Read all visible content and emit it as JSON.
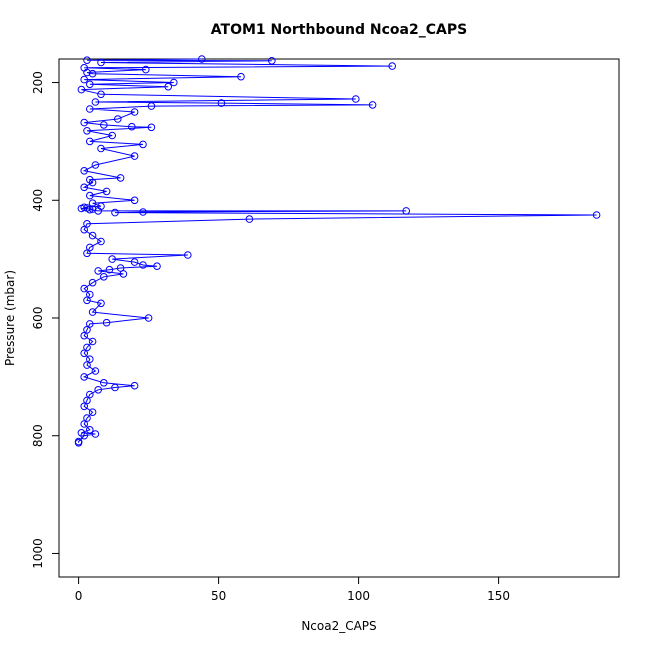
{
  "chart_data": {
    "type": "line",
    "title": "ATOM1 Northbound Ncoa2_CAPS",
    "xlabel": "Ncoa2_CAPS",
    "ylabel": "Pressure (mbar)",
    "xlim": [
      -7,
      193
    ],
    "ylim": [
      1040,
      160
    ],
    "y_reversed": true,
    "grid": false,
    "x_ticks": [
      0,
      50,
      100,
      150
    ],
    "y_ticks": [
      200,
      400,
      600,
      800,
      1000
    ],
    "x_tick_labels": [
      "0",
      "50",
      "100",
      "150"
    ],
    "y_tick_labels": [
      "200",
      "400",
      "600",
      "800",
      "1000"
    ],
    "series_color": "#0000ff",
    "series": [
      {
        "x": [
          44,
          3,
          69,
          8,
          112,
          2,
          24,
          3,
          5,
          58,
          2,
          34,
          4,
          32,
          1,
          8,
          99,
          6,
          51,
          105,
          26,
          4,
          20,
          14,
          2,
          9,
          19,
          26,
          3,
          12,
          4,
          23,
          8,
          20,
          6,
          2,
          15,
          4,
          5,
          2,
          10,
          4,
          20,
          5,
          8,
          2,
          3,
          1,
          5,
          4,
          7,
          117,
          23,
          13,
          185,
          61,
          3,
          2,
          5,
          8,
          4,
          3,
          39,
          12,
          20,
          23,
          28,
          15,
          11,
          7,
          16,
          9,
          5,
          2,
          4,
          3,
          8,
          5,
          25,
          10,
          4,
          3,
          2,
          5,
          3,
          2,
          4,
          3,
          6,
          2,
          9,
          20,
          13,
          7,
          4,
          3,
          2,
          5,
          3,
          2,
          4,
          1,
          6,
          2,
          0,
          0
        ],
        "y": [
          160,
          162,
          163,
          166,
          172,
          175,
          178,
          183,
          185,
          190,
          195,
          200,
          203,
          207,
          212,
          220,
          228,
          233,
          235,
          238,
          240,
          245,
          250,
          262,
          268,
          272,
          275,
          276,
          282,
          290,
          300,
          305,
          312,
          325,
          340,
          350,
          362,
          365,
          370,
          378,
          385,
          392,
          400,
          405,
          410,
          412,
          413,
          414,
          415,
          416,
          418,
          418,
          420,
          421,
          425,
          432,
          440,
          450,
          460,
          470,
          480,
          490,
          493,
          500,
          505,
          510,
          512,
          515,
          518,
          520,
          525,
          530,
          540,
          550,
          560,
          570,
          575,
          590,
          600,
          608,
          610,
          620,
          630,
          640,
          650,
          660,
          670,
          680,
          690,
          700,
          710,
          715,
          718,
          722,
          730,
          740,
          750,
          760,
          770,
          780,
          790,
          795,
          797,
          800,
          810,
          812
        ]
      }
    ]
  }
}
